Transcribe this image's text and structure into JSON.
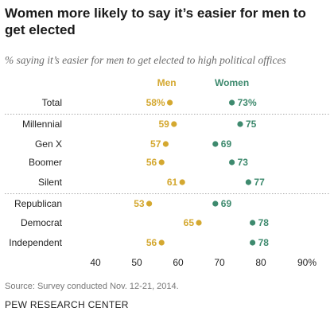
{
  "title": "Women more likely to say it’s easier for men to get elected",
  "subtitle": "% saying it’s easier for men to get elected to high political offices",
  "source": "Source: Survey conducted Nov. 12-21, 2014.",
  "org": "PEW RESEARCH CENTER",
  "colors": {
    "men": "#d4a830",
    "women": "#3e8a6e",
    "divider": "#aaaaaa",
    "label": "#222222"
  },
  "chart_data": {
    "type": "scatter",
    "categories": [
      "Total",
      "Millennial",
      "Gen X",
      "Boomer",
      "Silent",
      "Republican",
      "Democrat",
      "Independent"
    ],
    "series": [
      {
        "name": "Men",
        "values": [
          58,
          59,
          57,
          56,
          61,
          53,
          65,
          56
        ],
        "labels": [
          "58%",
          "59",
          "57",
          "56",
          "61",
          "53",
          "65",
          "56"
        ]
      },
      {
        "name": "Women",
        "values": [
          73,
          75,
          69,
          73,
          77,
          69,
          78,
          78
        ],
        "labels": [
          "73%",
          "75",
          "69",
          "73",
          "77",
          "69",
          "78",
          "78"
        ]
      }
    ],
    "xlim": [
      40,
      90
    ],
    "xticks": [
      40,
      50,
      60,
      70,
      80,
      90
    ],
    "xtick_labels": [
      "40",
      "50",
      "60",
      "70",
      "80",
      "90%"
    ],
    "group_breaks_after": [
      0,
      4
    ],
    "grid": false,
    "legend": "top, inline above series"
  }
}
